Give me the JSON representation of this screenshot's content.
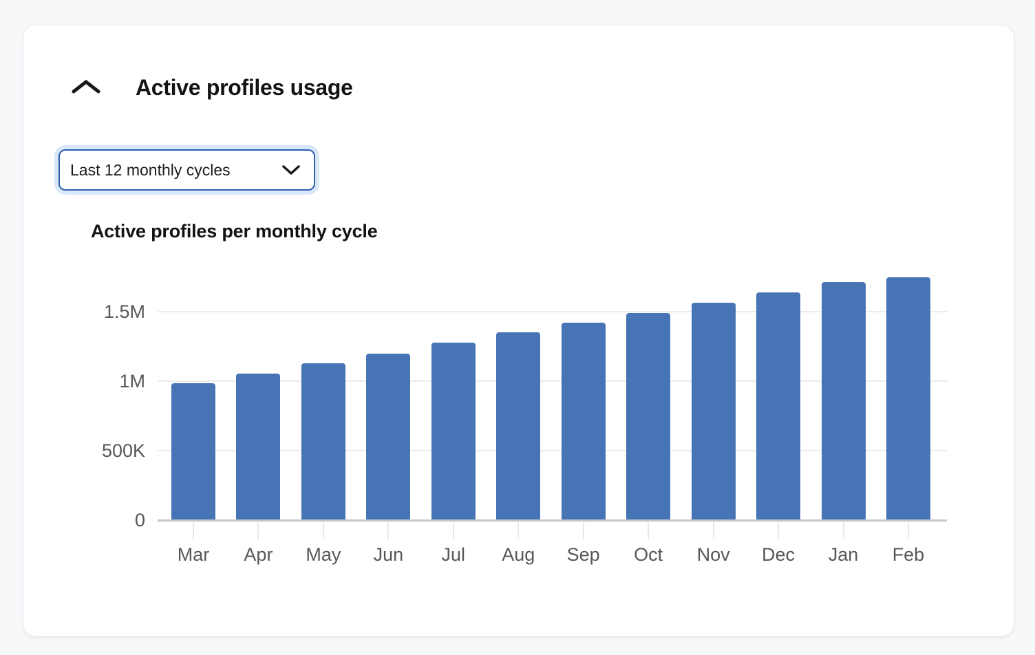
{
  "card": {
    "collapse_icon": "chevron-up-icon",
    "title": "Active profiles usage"
  },
  "filter_dropdown": {
    "selected_option": "Last 12 monthly cycles",
    "icon": "chevron-down-icon"
  },
  "chart_data": {
    "type": "bar",
    "title": "Active profiles per monthly cycle",
    "categories": [
      "Mar",
      "Apr",
      "May",
      "Jun",
      "Jul",
      "Aug",
      "Sep",
      "Oct",
      "Nov",
      "Dec",
      "Jan",
      "Feb"
    ],
    "values": [
      985000,
      1055000,
      1130000,
      1200000,
      1275000,
      1350000,
      1420000,
      1490000,
      1565000,
      1640000,
      1715000,
      1750000
    ],
    "yticks": [
      {
        "label": "1.5M",
        "value": 1500000
      },
      {
        "label": "1M",
        "value": 1000000
      },
      {
        "label": "500K",
        "value": 500000
      },
      {
        "label": "0",
        "value": 0
      }
    ],
    "ylim": [
      0,
      1800000
    ],
    "xlabel": "",
    "ylabel": "",
    "grid": true,
    "legend": false,
    "bar_color": "#4674b5"
  },
  "colors": {
    "page_bg": "#f7f8fa",
    "card_bg": "#ffffff",
    "card_border": "#e8e9ee",
    "bar": "#4674b5",
    "gridline": "#ececee",
    "axis_baseline": "#c3c5c9",
    "axis_text": "#56575b",
    "title_text": "#131316",
    "dropdown_border": "#3060ae",
    "dropdown_focus_ring": "#d9e8f8"
  }
}
